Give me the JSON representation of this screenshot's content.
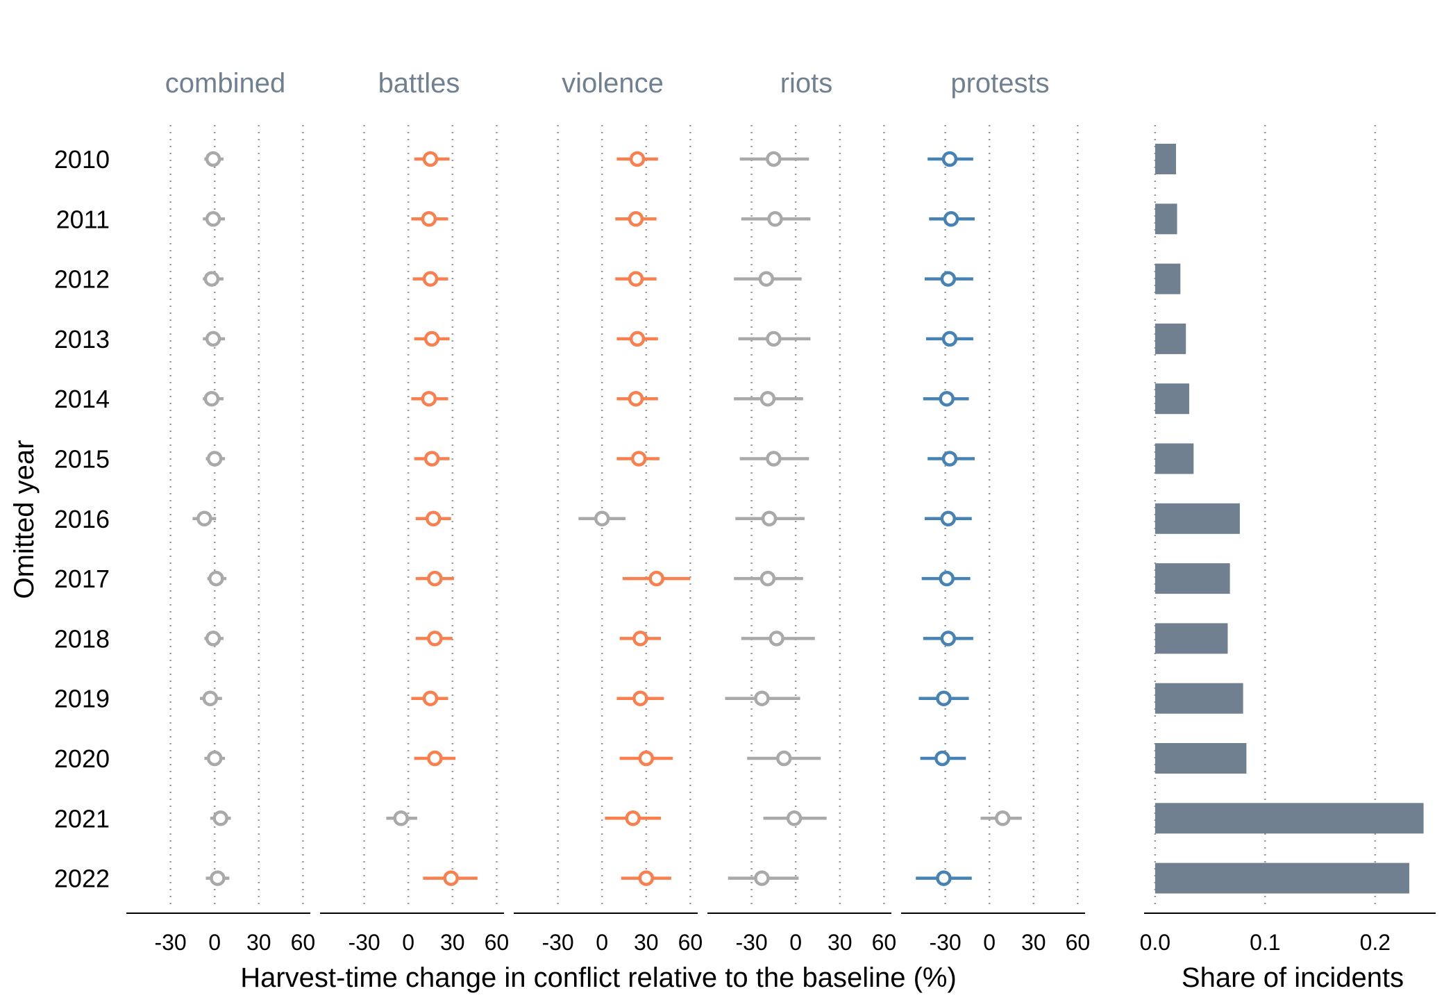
{
  "colors": {
    "battles": "#FA7F4F",
    "violence": "#FA7F4F",
    "protests": "#4682B4",
    "nonsig": "#A9A9A9",
    "bar": "#708090",
    "title": "#708090"
  },
  "chart_data": {
    "type": "scatter",
    "ylabel": "Omitted year",
    "xlabel": "Harvest-time change in conflict relative to the baseline (%)",
    "years": [
      "2010",
      "2011",
      "2012",
      "2013",
      "2014",
      "2015",
      "2016",
      "2017",
      "2018",
      "2019",
      "2020",
      "2021",
      "2022"
    ],
    "x_ticks": [
      -30,
      0,
      30,
      60
    ],
    "x_tick_labels": [
      "-30",
      "0",
      "30",
      "60"
    ],
    "xlim": [
      -60,
      65
    ],
    "panels": [
      {
        "title": "combined",
        "estimates": [
          -1,
          -1,
          -2,
          -1,
          -2,
          0,
          -7,
          1,
          -1,
          -3,
          0,
          4,
          2
        ],
        "lower": [
          -7,
          -8,
          -8,
          -8,
          -8,
          -6,
          -15,
          -5,
          -7,
          -10,
          -7,
          -3,
          -6
        ],
        "upper": [
          6,
          7,
          6,
          7,
          6,
          7,
          1,
          8,
          6,
          5,
          7,
          11,
          10
        ],
        "significant": [
          false,
          false,
          false,
          false,
          false,
          false,
          false,
          false,
          false,
          false,
          false,
          false,
          false
        ]
      },
      {
        "title": "battles",
        "estimates": [
          15,
          14,
          15,
          16,
          14,
          16,
          17,
          18,
          18,
          15,
          18,
          -5,
          29
        ],
        "lower": [
          4,
          2,
          3,
          4,
          2,
          4,
          5,
          5,
          5,
          2,
          4,
          -15,
          10
        ],
        "upper": [
          28,
          27,
          27,
          28,
          27,
          28,
          29,
          31,
          30,
          27,
          32,
          6,
          47
        ],
        "significant": [
          true,
          true,
          true,
          true,
          true,
          true,
          true,
          true,
          true,
          true,
          true,
          false,
          true
        ]
      },
      {
        "title": "violence",
        "estimates": [
          24,
          23,
          23,
          24,
          23,
          25,
          0,
          37,
          26,
          26,
          30,
          21,
          30
        ],
        "lower": [
          10,
          9,
          9,
          10,
          10,
          10,
          -16,
          14,
          12,
          10,
          12,
          2,
          13
        ],
        "upper": [
          38,
          37,
          37,
          38,
          38,
          39,
          16,
          60,
          40,
          42,
          48,
          40,
          47
        ],
        "significant": [
          true,
          true,
          true,
          true,
          true,
          true,
          false,
          true,
          true,
          true,
          true,
          true,
          true
        ]
      },
      {
        "title": "riots",
        "estimates": [
          -15,
          -14,
          -20,
          -15,
          -19,
          -15,
          -18,
          -19,
          -13,
          -23,
          -8,
          -1,
          -23
        ],
        "lower": [
          -38,
          -37,
          -42,
          -39,
          -42,
          -38,
          -41,
          -42,
          -37,
          -48,
          -33,
          -22,
          -46
        ],
        "upper": [
          9,
          10,
          4,
          10,
          5,
          9,
          6,
          5,
          13,
          3,
          17,
          21,
          2
        ],
        "significant": [
          false,
          false,
          false,
          false,
          false,
          false,
          false,
          false,
          false,
          false,
          false,
          false,
          false
        ]
      },
      {
        "title": "protests",
        "estimates": [
          -27,
          -26,
          -28,
          -27,
          -29,
          -27,
          -28,
          -29,
          -28,
          -31,
          -32,
          9,
          -31
        ],
        "lower": [
          -42,
          -41,
          -44,
          -43,
          -45,
          -42,
          -44,
          -46,
          -45,
          -48,
          -47,
          -6,
          -50
        ],
        "upper": [
          -11,
          -10,
          -11,
          -11,
          -14,
          -10,
          -12,
          -13,
          -11,
          -14,
          -16,
          22,
          -12
        ],
        "significant": [
          true,
          true,
          true,
          true,
          true,
          true,
          true,
          true,
          true,
          true,
          true,
          false,
          true
        ]
      }
    ],
    "share_panel": {
      "type": "bar",
      "xlabel": "Share of incidents",
      "x_ticks": [
        0.0,
        0.1,
        0.2
      ],
      "x_tick_labels": [
        "0.0",
        "0.1",
        "0.2"
      ],
      "xlim": [
        -0.01,
        0.255
      ],
      "values": [
        0.019,
        0.02,
        0.023,
        0.028,
        0.031,
        0.035,
        0.077,
        0.068,
        0.066,
        0.08,
        0.083,
        0.244,
        0.231
      ]
    }
  }
}
